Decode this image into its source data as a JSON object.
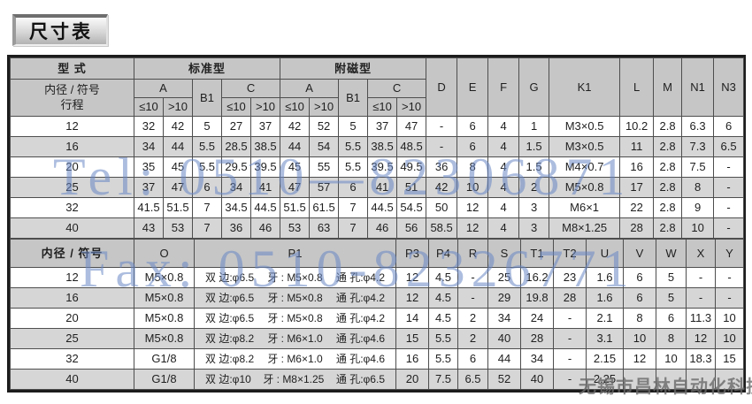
{
  "page_title": "尺寸表",
  "watermarks": {
    "tel": "Tel: 0510—82306871",
    "fax": "Fax: 0510-82326771",
    "company": "无锡市昌林自动化科技"
  },
  "colors": {
    "header_bg": "#c6c6c6",
    "alt_row_bg": "#d6d6d6",
    "watermark_blue": "#6886c4",
    "outer_border": "#1c1c1c"
  },
  "table1": {
    "corner_top": "型 式",
    "corner_mid": "内径 / 符号",
    "corner_bottom": "行程",
    "group_standard": "标准型",
    "group_magnetic": "附磁型",
    "sub_a": "A",
    "sub_b1": "B1",
    "sub_c": "C",
    "le10": "≤10",
    "gt10": ">10",
    "tail_headers": [
      "D",
      "E",
      "F",
      "G",
      "K1",
      "L",
      "M",
      "N1",
      "N3"
    ],
    "rows": [
      {
        "bore": "12",
        "std": [
          "32",
          "42",
          "5",
          "27",
          "37"
        ],
        "mag": [
          "42",
          "52",
          "5",
          "37",
          "47"
        ],
        "tail": [
          "-",
          "6",
          "4",
          "1",
          "M3×0.5",
          "10.2",
          "2.8",
          "6.3",
          "6"
        ]
      },
      {
        "bore": "16",
        "std": [
          "34",
          "44",
          "5.5",
          "28.5",
          "38.5"
        ],
        "mag": [
          "44",
          "54",
          "5.5",
          "38.5",
          "48.5"
        ],
        "tail": [
          "-",
          "6",
          "4",
          "1.5",
          "M3×0.5",
          "11",
          "2.8",
          "7.3",
          "6.5"
        ]
      },
      {
        "bore": "20",
        "std": [
          "35",
          "45",
          "5.5",
          "29.5",
          "39.5"
        ],
        "mag": [
          "45",
          "55",
          "5.5",
          "39.5",
          "49.5"
        ],
        "tail": [
          "36",
          "8",
          "4",
          "1.5",
          "M4×0.7",
          "16",
          "2.8",
          "7.5",
          "-"
        ]
      },
      {
        "bore": "25",
        "std": [
          "37",
          "47",
          "6",
          "34",
          "41"
        ],
        "mag": [
          "47",
          "57",
          "6",
          "41",
          "51"
        ],
        "tail": [
          "42",
          "10",
          "4",
          "2",
          "M5×0.8",
          "17",
          "2.8",
          "8",
          "-"
        ]
      },
      {
        "bore": "32",
        "std": [
          "41.5",
          "51.5",
          "7",
          "34.5",
          "44.5"
        ],
        "mag": [
          "51.5",
          "61.5",
          "7",
          "44.5",
          "54.5"
        ],
        "tail": [
          "50",
          "12",
          "4",
          "3",
          "M6×1",
          "22",
          "2.8",
          "9",
          "-"
        ]
      },
      {
        "bore": "40",
        "std": [
          "43",
          "53",
          "7",
          "36",
          "46"
        ],
        "mag": [
          "53",
          "63",
          "7",
          "46",
          "56"
        ],
        "tail": [
          "58.5",
          "12",
          "4",
          "3",
          "M8×1.25",
          "28",
          "2.8",
          "10",
          "-"
        ]
      }
    ]
  },
  "table2": {
    "corner": "内径 / 符号",
    "headers": [
      "O",
      "P1",
      "P3",
      "P4",
      "R",
      "S",
      "T1",
      "T2",
      "U",
      "V",
      "W",
      "X",
      "Y"
    ],
    "rows": [
      {
        "bore": "12",
        "o": "M5×0.8",
        "p1": [
          "双 边:φ6.5",
          "牙 : M5×0.8",
          "通 孔:φ4.2"
        ],
        "vals": [
          "12",
          "4.5",
          "-",
          "25",
          "16.2",
          "23",
          "1.6",
          "6",
          "5",
          "-",
          "-"
        ]
      },
      {
        "bore": "16",
        "o": "M5×0.8",
        "p1": [
          "双 边:φ6.5",
          "牙 : M5×0.8",
          "通 孔:φ4.2"
        ],
        "vals": [
          "12",
          "4.5",
          "-",
          "29",
          "19.8",
          "28",
          "1.6",
          "6",
          "5",
          "-",
          "-"
        ]
      },
      {
        "bore": "20",
        "o": "M5×0.8",
        "p1": [
          "双 边:φ6.5",
          "牙 : M5×0.8",
          "通 孔:φ4.2"
        ],
        "vals": [
          "14",
          "4.5",
          "2",
          "34",
          "24",
          "-",
          "2.1",
          "8",
          "6",
          "11.3",
          "10"
        ]
      },
      {
        "bore": "25",
        "o": "M5×0.8",
        "p1": [
          "双 边:φ8.2",
          "牙 : M6×1.0",
          "通 孔:φ4.6"
        ],
        "vals": [
          "15",
          "5.5",
          "2",
          "40",
          "28",
          "-",
          "3.1",
          "10",
          "8",
          "12",
          "10"
        ]
      },
      {
        "bore": "32",
        "o": "G1/8",
        "p1": [
          "双 边:φ8.2",
          "牙 : M6×1.0",
          "通 孔:φ4.6"
        ],
        "vals": [
          "16",
          "5.5",
          "6",
          "44",
          "34",
          "-",
          "2.15",
          "12",
          "10",
          "18.3",
          "15"
        ]
      },
      {
        "bore": "40",
        "o": "G1/8",
        "p1": [
          "双 边:φ10",
          "牙 : M8×1.25",
          "通 孔:φ6.5"
        ],
        "vals": [
          "20",
          "7.5",
          "6.5",
          "52",
          "40",
          "-",
          "2.25",
          "",
          "",
          "",
          ""
        ]
      }
    ]
  }
}
